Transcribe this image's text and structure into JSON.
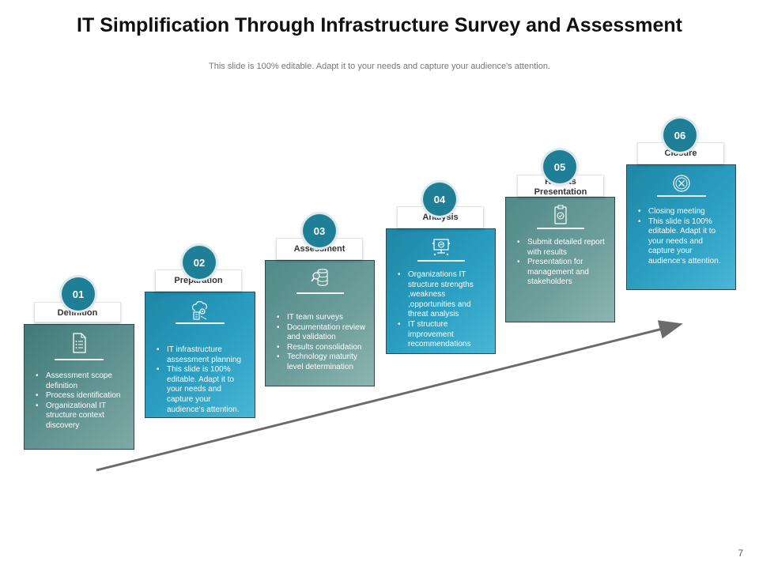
{
  "title": "IT Simplification Through Infrastructure Survey and Assessment",
  "subtitle": "This slide is 100% editable. Adapt it to your needs and capture your audience's attention.",
  "page_number": "7",
  "steps": [
    {
      "number": "01",
      "label": "Definition",
      "icon": "document-list-icon",
      "bullets": [
        "Assessment scope definition",
        "Process identification",
        "Organizational IT structure context discovery"
      ]
    },
    {
      "number": "02",
      "label": "Preparation",
      "icon": "cloud-gear-icon",
      "bullets": [
        "IT infrastructure assessment planning",
        "This slide is 100% editable.  Adapt it to your needs and capture your audience's attention."
      ]
    },
    {
      "number": "03",
      "label": "Assessment",
      "icon": "database-search-icon",
      "bullets": [
        "IT team surveys",
        "Documentation review and validation",
        "Results consolidation",
        "Technology maturity level determination"
      ]
    },
    {
      "number": "04",
      "label": "Analysis",
      "icon": "monitor-analysis-icon",
      "bullets": [
        "Organizations IT structure strengths ,weakness ,opportunities and threat analysis",
        "IT structure improvement recommendations"
      ]
    },
    {
      "number": "05",
      "label": "Results Presentation",
      "icon": "report-clipboard-icon",
      "bullets": [
        "Submit detailed report with results",
        "Presentation for management  and stakeholders"
      ]
    },
    {
      "number": "06",
      "label": "Closure",
      "icon": "close-circle-icon",
      "bullets": [
        "Closing meeting",
        "This slide is 100% editable.  Adapt it to your needs and capture your audience's attention."
      ]
    }
  ]
}
